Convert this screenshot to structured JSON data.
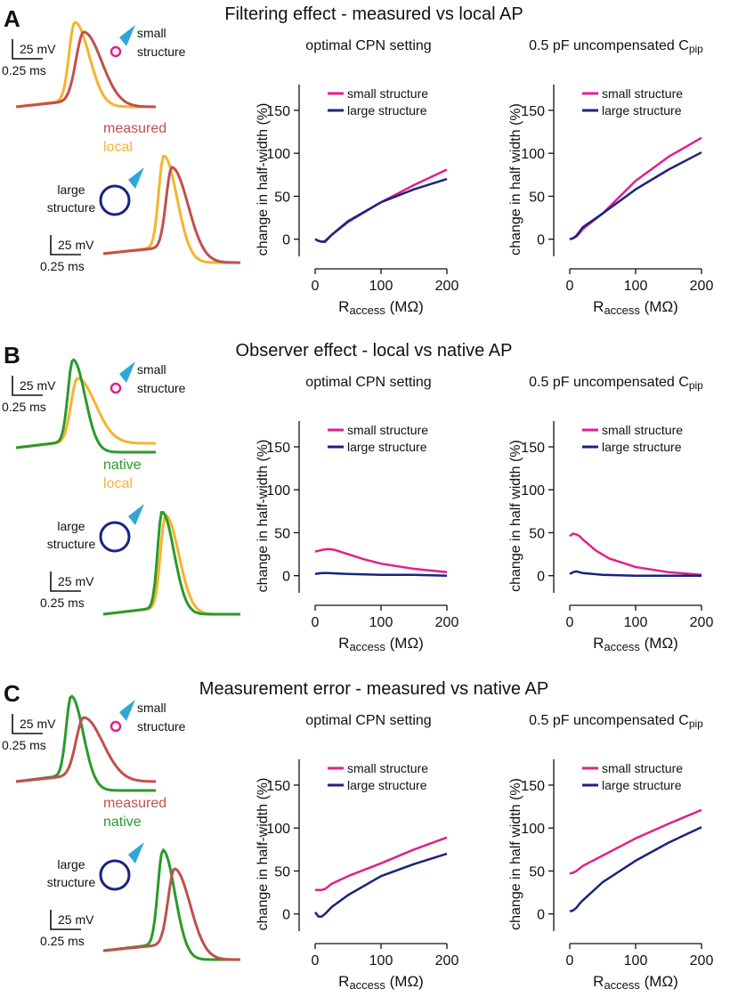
{
  "colors": {
    "measured": "#c0504d",
    "local": "#f6b42b",
    "native": "#2a9a2a",
    "small": "#e0218a",
    "large": "#1a237e",
    "pipette": "#2fa6d8",
    "axis": "#111111"
  },
  "common": {
    "scale_mv": "25 mV",
    "scale_ms": "0.25 ms",
    "small_label_1": "small",
    "small_label_2": "structure",
    "large_label_1": "large",
    "large_label_2": "structure",
    "xlabel_main": "R",
    "xlabel_sub": "access",
    "xlabel_unit": " (MΩ)",
    "legend_small": "small structure",
    "legend_large": "large structure",
    "x_ticks": [
      "0",
      "100",
      "200"
    ],
    "y_ticks": [
      "0",
      "50",
      "100",
      "150"
    ]
  },
  "panels": [
    {
      "letter": "A",
      "title": "Filtering effect - measured vs local AP",
      "legend_line1": "measured",
      "legend_line2": "local",
      "chart_left": {
        "title": "optimal CPN setting",
        "ylabel": "change in half-width (%)"
      },
      "chart_right": {
        "title_main": "0.5 pF uncompensated C",
        "title_sub": "pip",
        "ylabel": "change in half width (%)"
      }
    },
    {
      "letter": "B",
      "title": "Observer effect - local vs native AP",
      "legend_line1": "native",
      "legend_line2": "local",
      "chart_left": {
        "title": "optimal CPN setting",
        "ylabel": "change in half-width (%)"
      },
      "chart_right": {
        "title_main": "0.5 pF uncompensated C",
        "title_sub": "pip",
        "ylabel": "change in half width (%)"
      }
    },
    {
      "letter": "C",
      "title": "Measurement error - measured vs native AP",
      "legend_line1": "measured",
      "legend_line2": "native",
      "chart_left": {
        "title": "optimal CPN setting",
        "ylabel": "change in half-width (%)"
      },
      "chart_right": {
        "title_main": "0.5 pF uncompensated C",
        "title_sub": "pip",
        "ylabel": "change in half width (%)"
      }
    }
  ],
  "chart_data": [
    {
      "type": "line",
      "panel": "A",
      "title": "optimal CPN setting",
      "xlabel": "Raccess (MΩ)",
      "ylabel": "change in half-width (%)",
      "xlim": [
        0,
        200
      ],
      "ylim": [
        -20,
        180
      ],
      "series": [
        {
          "name": "small structure",
          "x": [
            0,
            5,
            10,
            15,
            25,
            50,
            100,
            150,
            200
          ],
          "y": [
            0,
            -2,
            -3,
            -2,
            5,
            20,
            43,
            63,
            81
          ]
        },
        {
          "name": "large structure",
          "x": [
            0,
            5,
            10,
            15,
            25,
            50,
            100,
            150,
            200
          ],
          "y": [
            0,
            -2,
            -3,
            -3,
            5,
            21,
            43,
            58,
            70
          ]
        }
      ]
    },
    {
      "type": "line",
      "panel": "A",
      "title": "0.5 pF uncompensated Cpip",
      "xlabel": "Raccess (MΩ)",
      "ylabel": "change in half width (%)",
      "xlim": [
        0,
        200
      ],
      "ylim": [
        -20,
        180
      ],
      "series": [
        {
          "name": "small structure",
          "x": [
            0,
            5,
            10,
            15,
            20,
            50,
            100,
            150,
            200
          ],
          "y": [
            0,
            1,
            3,
            7,
            12,
            30,
            68,
            96,
            118
          ]
        },
        {
          "name": "large structure",
          "x": [
            0,
            5,
            10,
            15,
            20,
            50,
            100,
            150,
            200
          ],
          "y": [
            0,
            1,
            4,
            9,
            14,
            30,
            58,
            81,
            101
          ]
        }
      ]
    },
    {
      "type": "line",
      "panel": "B",
      "title": "optimal CPN setting",
      "xlabel": "Raccess (MΩ)",
      "ylabel": "change in half-width (%)",
      "xlim": [
        0,
        200
      ],
      "ylim": [
        -20,
        180
      ],
      "series": [
        {
          "name": "small structure",
          "x": [
            0,
            10,
            20,
            30,
            50,
            75,
            100,
            150,
            200
          ],
          "y": [
            28,
            30,
            31,
            30,
            25,
            19,
            14,
            8,
            4
          ]
        },
        {
          "name": "large structure",
          "x": [
            0,
            10,
            20,
            50,
            100,
            150,
            200
          ],
          "y": [
            2,
            3,
            3,
            2,
            1,
            1,
            0
          ]
        }
      ]
    },
    {
      "type": "line",
      "panel": "B",
      "title": "0.5 pF uncompensated Cpip",
      "xlabel": "Raccess (MΩ)",
      "ylabel": "change in half width (%)",
      "xlim": [
        0,
        200
      ],
      "ylim": [
        -20,
        180
      ],
      "series": [
        {
          "name": "small structure",
          "x": [
            0,
            5,
            10,
            15,
            20,
            40,
            60,
            100,
            150,
            200
          ],
          "y": [
            46,
            49,
            48,
            46,
            42,
            29,
            20,
            10,
            4,
            1
          ]
        },
        {
          "name": "large structure",
          "x": [
            0,
            5,
            10,
            20,
            50,
            100,
            200
          ],
          "y": [
            2,
            4,
            5,
            3,
            1,
            0,
            0
          ]
        }
      ]
    },
    {
      "type": "line",
      "panel": "C",
      "title": "optimal CPN setting",
      "xlabel": "Raccess (MΩ)",
      "ylabel": "change in half-width (%)",
      "xlim": [
        0,
        200
      ],
      "ylim": [
        -20,
        180
      ],
      "series": [
        {
          "name": "small structure",
          "x": [
            0,
            10,
            15,
            25,
            50,
            100,
            150,
            200
          ],
          "y": [
            28,
            28,
            29,
            35,
            44,
            59,
            75,
            89
          ]
        },
        {
          "name": "large structure",
          "x": [
            0,
            5,
            10,
            15,
            25,
            50,
            100,
            150,
            200
          ],
          "y": [
            2,
            -3,
            -3,
            0,
            8,
            22,
            44,
            58,
            70
          ]
        }
      ]
    },
    {
      "type": "line",
      "panel": "C",
      "title": "0.5 pF uncompensated Cpip",
      "xlabel": "Raccess (MΩ)",
      "ylabel": "change in half width (%)",
      "xlim": [
        0,
        200
      ],
      "ylim": [
        -20,
        180
      ],
      "series": [
        {
          "name": "small structure",
          "x": [
            0,
            5,
            10,
            20,
            50,
            100,
            150,
            200
          ],
          "y": [
            47,
            48,
            50,
            56,
            68,
            88,
            105,
            121
          ]
        },
        {
          "name": "large structure",
          "x": [
            0,
            5,
            10,
            15,
            20,
            50,
            100,
            150,
            200
          ],
          "y": [
            3,
            4,
            7,
            12,
            16,
            37,
            62,
            83,
            101
          ]
        }
      ]
    }
  ]
}
